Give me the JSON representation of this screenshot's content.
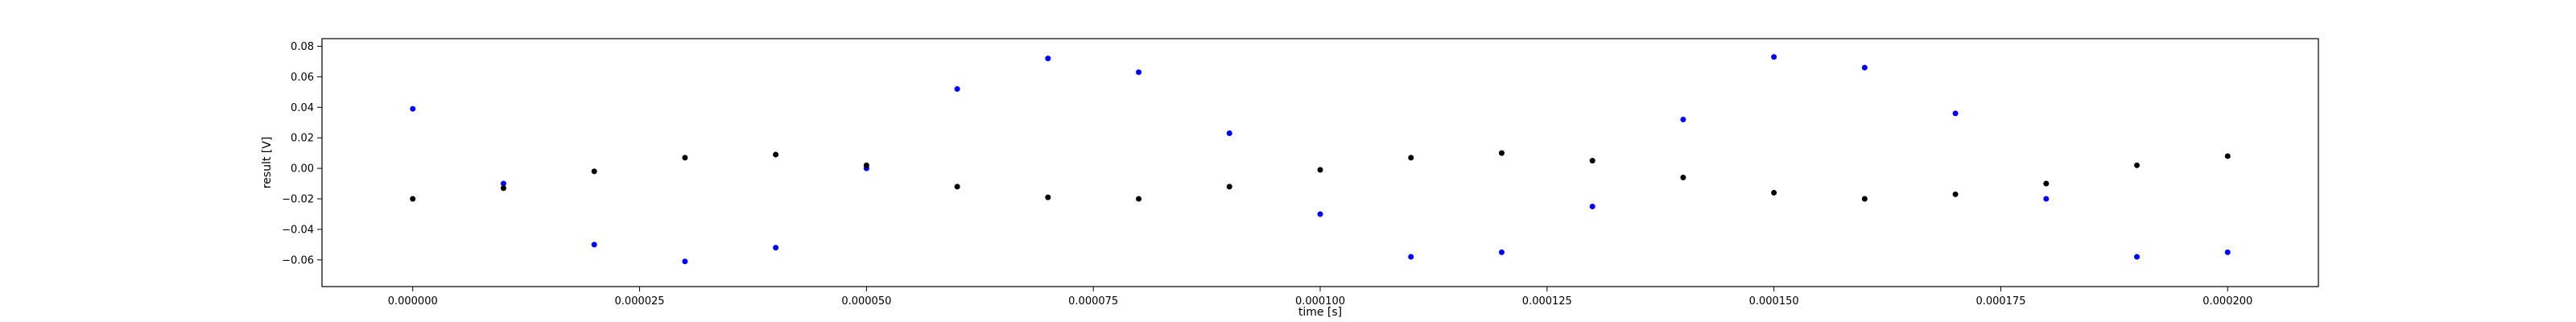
{
  "chart_data": {
    "type": "scatter",
    "title": "",
    "xlabel": "time [s]",
    "ylabel": "result [V]",
    "xlim": [
      -1e-05,
      0.00021
    ],
    "ylim": [
      -0.0775,
      0.085
    ],
    "x_ticks": [
      "0.000000",
      "0.000025",
      "0.000050",
      "0.000075",
      "0.000100",
      "0.000125",
      "0.000150",
      "0.000175",
      "0.000200"
    ],
    "x_tick_values": [
      0,
      2.5e-05,
      5e-05,
      7.5e-05,
      0.0001,
      0.000125,
      0.00015,
      0.000175,
      0.0002
    ],
    "y_ticks": [
      "−0.06",
      "−0.04",
      "−0.02",
      "0.00",
      "0.02",
      "0.04",
      "0.06",
      "0.08"
    ],
    "y_tick_values": [
      -0.06,
      -0.04,
      -0.02,
      0,
      0.02,
      0.04,
      0.06,
      0.08
    ],
    "grid": false,
    "legend": "none",
    "series": [
      {
        "color": "#0000ff",
        "marker": "dot",
        "x": [
          0,
          1e-05,
          2e-05,
          3e-05,
          4e-05,
          5e-05,
          6e-05,
          7e-05,
          8e-05,
          9e-05,
          0.0001,
          0.00011,
          0.00012,
          0.00013,
          0.00014,
          0.00015,
          0.00016,
          0.00017,
          0.00018,
          0.00019,
          0.0002
        ],
        "y": [
          0.039,
          -0.01,
          -0.05,
          -0.061,
          -0.052,
          0.0,
          0.052,
          0.072,
          0.063,
          0.023,
          -0.03,
          -0.058,
          -0.055,
          -0.025,
          0.032,
          0.073,
          0.066,
          0.036,
          -0.02,
          -0.058,
          -0.055
        ]
      },
      {
        "color": "#000000",
        "marker": "dot",
        "x": [
          0,
          1e-05,
          2e-05,
          3e-05,
          4e-05,
          5e-05,
          6e-05,
          7e-05,
          8e-05,
          9e-05,
          0.0001,
          0.00011,
          0.00012,
          0.00013,
          0.00014,
          0.00015,
          0.00016,
          0.00017,
          0.00018,
          0.00019,
          0.0002
        ],
        "y": [
          -0.02,
          -0.013,
          -0.002,
          0.007,
          0.009,
          0.002,
          -0.012,
          -0.019,
          -0.02,
          -0.012,
          -0.001,
          0.007,
          0.01,
          0.005,
          -0.006,
          -0.016,
          -0.02,
          -0.017,
          -0.01,
          0.002,
          0.008
        ]
      }
    ]
  }
}
